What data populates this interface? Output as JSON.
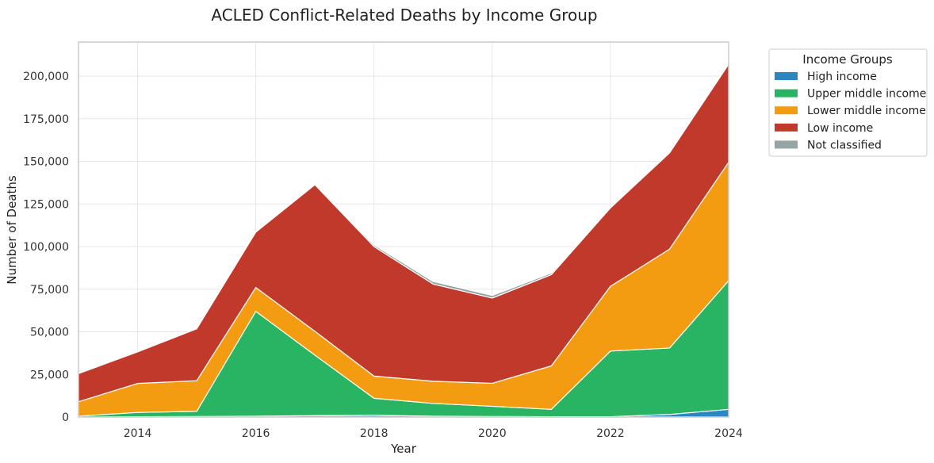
{
  "chart_data": {
    "type": "area",
    "stacked": true,
    "title": "ACLED Conflict-Related Deaths by Income Group",
    "xlabel": "Year",
    "ylabel": "Number of Deaths",
    "x": [
      2013,
      2014,
      2015,
      2016,
      2017,
      2018,
      2019,
      2020,
      2021,
      2022,
      2023,
      2024
    ],
    "xlim": [
      2013,
      2024
    ],
    "ylim": [
      0,
      220000
    ],
    "x_ticks": [
      2014,
      2016,
      2018,
      2020,
      2022,
      2024
    ],
    "x_tick_labels": [
      "2014",
      "2016",
      "2018",
      "2020",
      "2022",
      "2024"
    ],
    "y_ticks": [
      0,
      25000,
      50000,
      75000,
      100000,
      125000,
      150000,
      175000,
      200000
    ],
    "y_tick_labels": [
      "0",
      "25,000",
      "50,000",
      "75,000",
      "100,000",
      "125,000",
      "150,000",
      "175,000",
      "200,000"
    ],
    "grid": true,
    "legend_title": "Income Groups",
    "legend_placement": "outside-right",
    "series": [
      {
        "name": "High income",
        "color": "#2e86c1",
        "values": [
          0,
          200,
          300,
          500,
          800,
          1000,
          500,
          300,
          200,
          200,
          1500,
          4500
        ]
      },
      {
        "name": "Upper middle income",
        "color": "#28b463",
        "values": [
          500,
          2500,
          3000,
          61500,
          35500,
          10000,
          7500,
          6000,
          4300,
          38500,
          39000,
          75500
        ]
      },
      {
        "name": "Lower middle income",
        "color": "#f39c12",
        "values": [
          8500,
          17000,
          18000,
          14000,
          14000,
          13000,
          13000,
          13500,
          25500,
          38000,
          58000,
          69500
        ]
      },
      {
        "name": "Low income",
        "color": "#c0392b",
        "values": [
          16500,
          18500,
          30500,
          32500,
          86000,
          76000,
          57000,
          50000,
          53500,
          46000,
          56500,
          57500
        ]
      },
      {
        "name": "Not classified",
        "color": "#95a5a6",
        "values": [
          0,
          0,
          0,
          0,
          0,
          1000,
          1500,
          1500,
          1000,
          0,
          0,
          0
        ]
      }
    ]
  }
}
